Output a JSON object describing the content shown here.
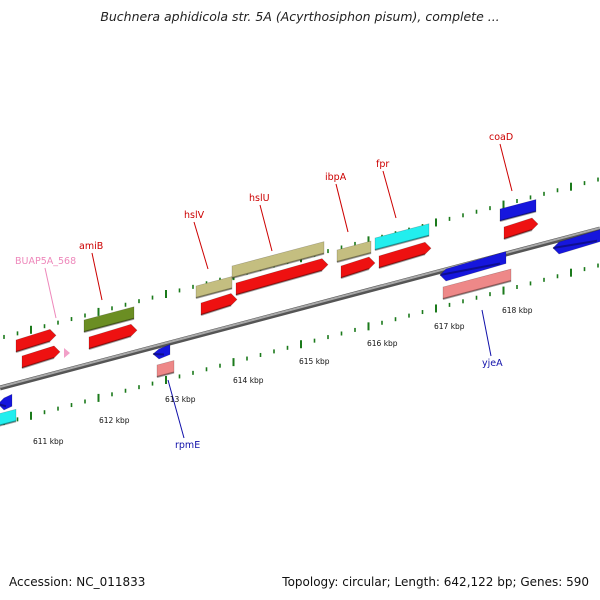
{
  "header": {
    "title": "Buchnera aphidicola str. 5A (Acyrthosiphon pisum), complete ..."
  },
  "footer": {
    "accession": "Accession: NC_011833",
    "stats": "Topology: circular; Length: 642,122 bp; Genes: 590"
  },
  "colors": {
    "backbone": "#8c8c8c",
    "ticks": "#1b7a1b",
    "red": "#ee1111",
    "blue": "#1616dd",
    "pink": "#ee8888",
    "khaki": "#c4be80",
    "cyan": "#22eeee",
    "olive": "#6b8e23",
    "label_red": "#cc0000",
    "label_blue": "#1111aa",
    "label_pink": "#ee88bb"
  },
  "kbp_labels": [
    "611 kbp",
    "612 kbp",
    "613 kbp",
    "614 kbp",
    "615 kbp",
    "616 kbp",
    "617 kbp",
    "618 kbp"
  ],
  "gene_labels": [
    "BUAP5A_568",
    "amiB",
    "hslV",
    "hslU",
    "ibpA",
    "fpr",
    "coaD",
    "rpmE",
    "yjeA"
  ]
}
